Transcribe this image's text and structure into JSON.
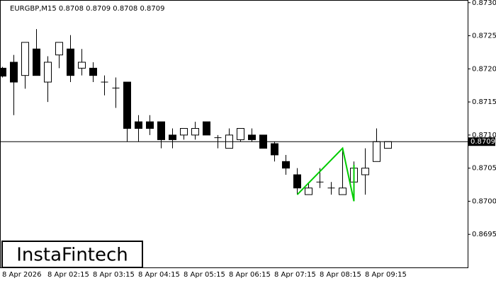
{
  "chart_data": {
    "type": "candlestick",
    "title": "EURGBP,M15  0.8708 0.8709 0.8708 0.8709",
    "categories": [
      "8 Apr 2026",
      null,
      null,
      null,
      "8 Apr 02:15",
      null,
      null,
      null,
      "8 Apr 03:15",
      null,
      null,
      null,
      "8 Apr 04:15",
      null,
      null,
      null,
      "8 Apr 05:15",
      null,
      null,
      null,
      "8 Apr 06:15",
      null,
      null,
      null,
      "8 Apr 07:15",
      null,
      null,
      null,
      "8 Apr 08:15",
      null,
      null,
      null,
      "8 Apr 09:15",
      null,
      null
    ],
    "open": [
      0.87201,
      0.8721,
      0.8719,
      0.8723,
      0.8718,
      0.87221,
      0.8723,
      0.87201,
      0.87201,
      0.8718,
      0.87171,
      0.8718,
      0.8712,
      0.8712,
      0.8712,
      0.871,
      0.871,
      0.871,
      0.8712,
      0.87096,
      0.8708,
      0.87093,
      0.871,
      0.871,
      0.87087,
      0.8706,
      0.8704,
      0.8701,
      0.87029,
      0.8702,
      0.8701,
      0.87029,
      0.8704,
      0.8706,
      0.8708
    ],
    "high": [
      0.87203,
      0.87221,
      0.8724,
      0.8726,
      0.87219,
      0.8724,
      0.87251,
      0.8723,
      0.8721,
      0.8719,
      0.87187,
      0.8718,
      0.8713,
      0.8713,
      0.8712,
      0.8711,
      0.8711,
      0.8712,
      0.8712,
      0.871,
      0.8711,
      0.8711,
      0.8711,
      0.871,
      0.8709,
      0.8707,
      0.8705,
      0.87027,
      0.8705,
      0.87029,
      0.8708,
      0.8706,
      0.8708,
      0.8711,
      0.8709
    ],
    "low": [
      0.87187,
      0.8713,
      0.8717,
      0.8719,
      0.8715,
      0.87201,
      0.8718,
      0.8719,
      0.8718,
      0.8716,
      0.87141,
      0.8709,
      0.8709,
      0.871,
      0.8708,
      0.8708,
      0.87093,
      0.87093,
      0.871,
      0.8708,
      0.8708,
      0.8709,
      0.8709,
      0.8708,
      0.8706,
      0.8704,
      0.8701,
      0.8701,
      0.8702,
      0.8701,
      0.8701,
      0.8702,
      0.8701,
      0.8706,
      0.8708
    ],
    "close": [
      0.87189,
      0.8718,
      0.8724,
      0.8719,
      0.8721,
      0.8724,
      0.8719,
      0.8721,
      0.8719,
      0.8718,
      0.87171,
      0.8711,
      0.8711,
      0.8711,
      0.87093,
      0.87093,
      0.8711,
      0.8711,
      0.871,
      0.87096,
      0.871,
      0.8711,
      0.87093,
      0.8708,
      0.8707,
      0.8705,
      0.8702,
      0.8702,
      0.87029,
      0.8702,
      0.8702,
      0.8705,
      0.8705,
      0.8709,
      0.8709
    ],
    "up_color": "#ffffff",
    "down_color": "#000000",
    "outline_color": "#000000",
    "ylim": [
      0.869,
      0.87304
    ],
    "yticks": [
      {
        "value": 0.8695,
        "label": "0.8695"
      },
      {
        "value": 0.87,
        "label": "0.8700"
      },
      {
        "value": 0.8705,
        "label": "0.8705"
      },
      {
        "value": 0.871,
        "label": "0.8710"
      },
      {
        "value": 0.8715,
        "label": "0.8715"
      },
      {
        "value": 0.872,
        "label": "0.8720"
      },
      {
        "value": 0.8725,
        "label": "0.8725"
      },
      {
        "value": 0.873,
        "label": "0.8730"
      }
    ],
    "current_price": {
      "value": 0.8709,
      "label": "0.8709"
    },
    "pattern": {
      "color": "#00cc00",
      "x": [
        26,
        30,
        31,
        31
      ],
      "values": [
        0.8701,
        0.8708,
        0.87,
        0.87055
      ]
    },
    "watermark": "InstaFintech"
  }
}
